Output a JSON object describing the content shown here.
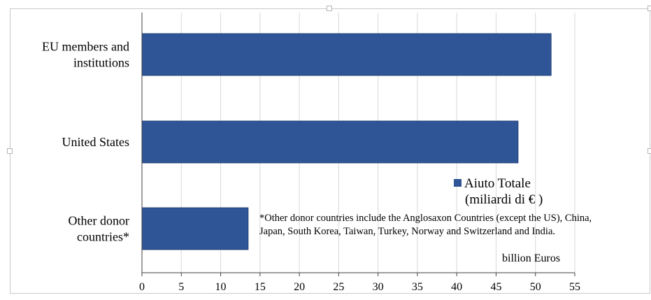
{
  "chart_data": {
    "type": "bar",
    "orientation": "horizontal",
    "categories": [
      "EU members and institutions",
      "United States",
      "Other donor countries*"
    ],
    "category_lines": [
      [
        "EU members and",
        "institutions"
      ],
      [
        "United States"
      ],
      [
        "Other donor",
        "countries*"
      ]
    ],
    "series": [
      {
        "name": "Aiuto Totale (miliardi di € )",
        "values": [
          52,
          47.8,
          13.5
        ],
        "color": "#2f5597"
      }
    ],
    "xlim": [
      0,
      55
    ],
    "xticks": [
      0,
      5,
      10,
      15,
      20,
      25,
      30,
      35,
      40,
      45,
      50,
      55
    ],
    "xlabel": "billion Euros",
    "grid": "vertical",
    "legend_position": "right"
  },
  "legend": {
    "line1": "Aiuto Totale",
    "line2": "(miliardi di € )"
  },
  "footnote": {
    "line1": "*Other donor countries include the Anglosaxon Countries (except the US), China,",
    "line2": "Japan, South Korea, Taiwan, Turkey, Norway and Switzerland and India."
  },
  "unit_label": "billion Euros"
}
